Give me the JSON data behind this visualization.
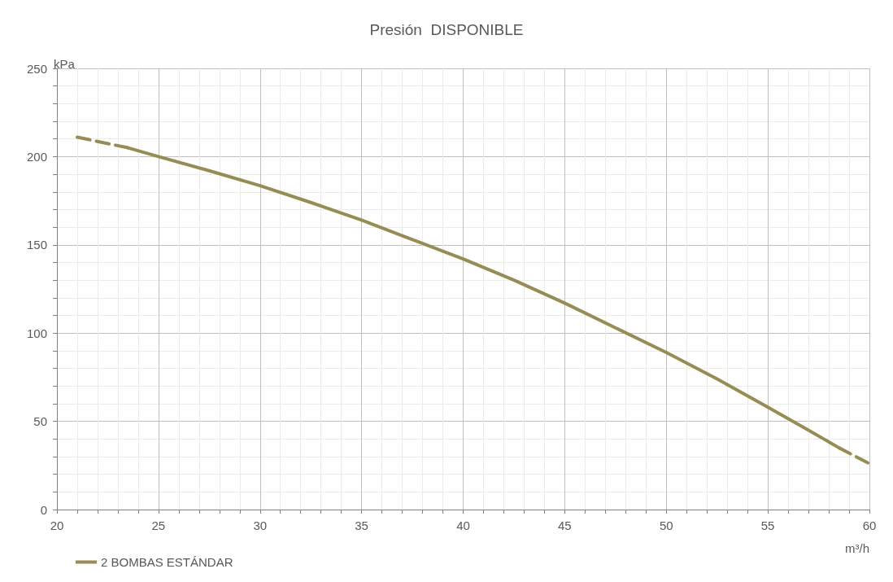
{
  "chart_data": {
    "type": "line",
    "title": "Presión  DISPONIBLE",
    "xlabel": "m³/h",
    "ylabel": "kPa",
    "series": [
      {
        "name": "2 BOMBAS ESTÁNDAR",
        "color": "#968c55",
        "line_style": "solid",
        "x": [
          23.5,
          25,
          27.5,
          30,
          32.5,
          35,
          37.5,
          40,
          42.5,
          45,
          47.5,
          50,
          52.5,
          55,
          57,
          58.5
        ],
        "values": [
          205,
          200,
          192,
          183.5,
          174,
          164,
          153,
          142,
          130,
          117,
          103,
          89,
          74,
          58,
          45,
          35
        ]
      },
      {
        "color": "#968c55",
        "line_style": "dashed",
        "x": [
          21,
          23.5
        ],
        "values": [
          211,
          205
        ]
      },
      {
        "color": "#968c55",
        "line_style": "dashed",
        "x": [
          58.5,
          60
        ],
        "values": [
          35,
          26
        ]
      }
    ],
    "xlim": [
      20,
      60
    ],
    "ylim": [
      0,
      250
    ],
    "xticks": [
      20,
      {
        "value": 21,
        "label": null
      },
      {
        "value": 22,
        "label": null
      },
      {
        "value": 23,
        "label": null
      },
      {
        "value": 24,
        "label": null
      },
      25,
      {
        "value": 26,
        "label": null
      },
      {
        "value": 27,
        "label": null
      },
      {
        "value": 28,
        "label": null
      },
      {
        "value": 29,
        "label": null
      },
      30,
      {
        "value": 31,
        "label": null
      },
      {
        "value": 32,
        "label": null
      },
      {
        "value": 33,
        "label": null
      },
      {
        "value": 34,
        "label": null
      },
      35,
      {
        "value": 36,
        "label": null
      },
      {
        "value": 37,
        "label": null
      },
      {
        "value": 38,
        "label": null
      },
      {
        "value": 39,
        "label": null
      },
      40,
      {
        "value": 41,
        "label": null
      },
      {
        "value": 42,
        "label": null
      },
      {
        "value": 43,
        "label": null
      },
      {
        "value": 44,
        "label": null
      },
      45,
      {
        "value": 46,
        "label": null
      },
      {
        "value": 47,
        "label": null
      },
      {
        "value": 48,
        "label": null
      },
      {
        "value": 49,
        "label": null
      },
      50,
      {
        "value": 51,
        "label": null
      },
      {
        "value": 52,
        "label": null
      },
      {
        "value": 53,
        "label": null
      },
      {
        "value": 54,
        "label": null
      },
      55,
      {
        "value": 56,
        "label": null
      },
      {
        "value": 57,
        "label": null
      },
      {
        "value": 58,
        "label": null
      },
      {
        "value": 59,
        "label": null
      },
      60
    ],
    "yticks": [
      0,
      {
        "value": 10,
        "label": null
      },
      {
        "value": 20,
        "label": null
      },
      {
        "value": 30,
        "label": null
      },
      {
        "value": 40,
        "label": null
      },
      50,
      {
        "value": 60,
        "label": null
      },
      {
        "value": 70,
        "label": null
      },
      {
        "value": 80,
        "label": null
      },
      {
        "value": 90,
        "label": null
      },
      100,
      {
        "value": 110,
        "label": null
      },
      {
        "value": 120,
        "label": null
      },
      {
        "value": 130,
        "label": null
      },
      {
        "value": 140,
        "label": null
      },
      150,
      {
        "value": 160,
        "label": null
      },
      {
        "value": 170,
        "label": null
      },
      {
        "value": 180,
        "label": null
      },
      {
        "value": 190,
        "label": null
      },
      200,
      {
        "value": 210,
        "label": null
      },
      {
        "value": 220,
        "label": null
      },
      {
        "value": 230,
        "label": null
      },
      {
        "value": 240,
        "label": null
      },
      250
    ],
    "grid": true,
    "legend": "bottom left",
    "marker": "none"
  }
}
